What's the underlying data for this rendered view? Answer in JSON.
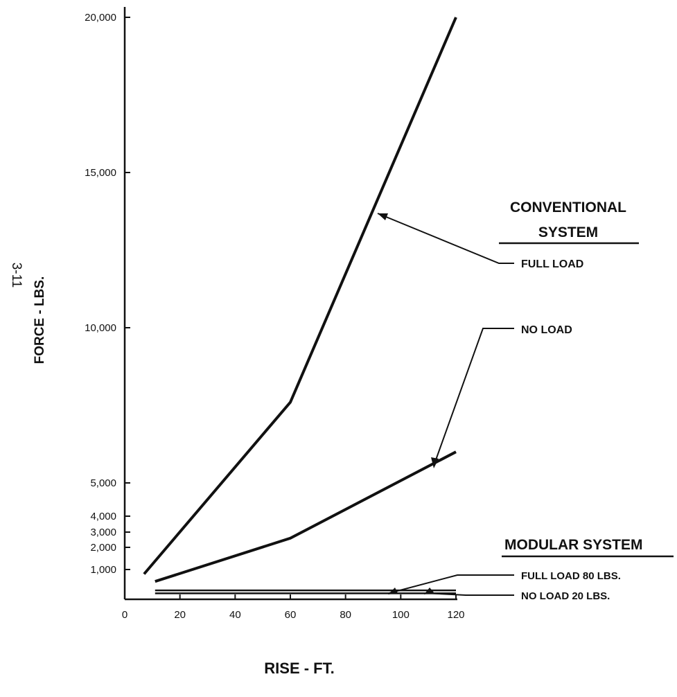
{
  "page_number": "3-11",
  "chart_data": {
    "type": "line",
    "xlabel": "RISE - FT.",
    "ylabel": "FORCE - LBS.",
    "xlim": [
      0,
      120
    ],
    "ylim": [
      0,
      20000
    ],
    "x_ticks": [
      0,
      20,
      40,
      60,
      80,
      100,
      120
    ],
    "x_tick_labels": [
      "0",
      "20",
      "40",
      "60",
      "80",
      "100",
      "120"
    ],
    "y_ticks": [
      1000,
      2000,
      3000,
      4000,
      5000,
      10000,
      15000,
      20000
    ],
    "y_tick_labels": [
      "1,000",
      "2,000",
      "3,000",
      "4,000",
      "5,000",
      "10,000",
      "15,000",
      "20,000"
    ],
    "grid": false,
    "groups": [
      {
        "heading": "CONVENTIONAL SYSTEM",
        "series": [
          {
            "name": "FULL LOAD",
            "x": [
              7,
              60,
              120
            ],
            "y": [
              850,
              7600,
              20000
            ]
          },
          {
            "name": "NO LOAD",
            "x": [
              11,
              60,
              120
            ],
            "y": [
              600,
              2600,
              6000
            ]
          }
        ]
      },
      {
        "heading": "MODULAR SYSTEM",
        "series": [
          {
            "name": "FULL LOAD 80 LBS.",
            "x": [
              11,
              120
            ],
            "y": [
              300,
              300
            ]
          },
          {
            "name": "NO LOAD 20 LBS.",
            "x": [
              11,
              120
            ],
            "y": [
              200,
              200
            ]
          }
        ]
      }
    ]
  }
}
